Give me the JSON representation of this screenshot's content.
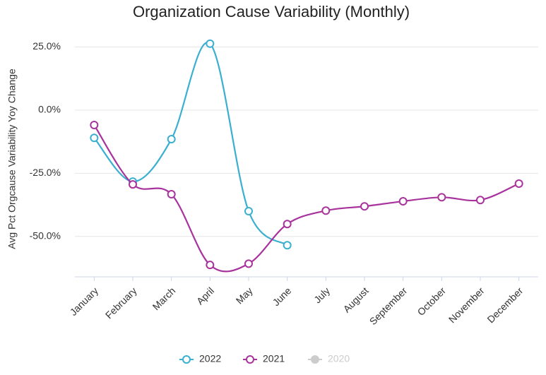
{
  "chart_data": {
    "type": "line",
    "title": "Organization Cause Variability (Monthly)",
    "y_label": "Avg Pct Orgcause Variability Yoy Change",
    "categories": [
      "January",
      "February",
      "March",
      "April",
      "May",
      "June",
      "July",
      "August",
      "September",
      "October",
      "November",
      "December"
    ],
    "series": [
      {
        "name": "2022",
        "color": "#3aafd0",
        "values": [
          -11,
          -28.3,
          -11.5,
          26.3,
          -40,
          -53.5,
          null,
          null,
          null,
          null,
          null,
          null
        ]
      },
      {
        "name": "2021",
        "color": "#a8339c",
        "values": [
          -5.9,
          -29.4,
          -33.3,
          -61.3,
          -60.8,
          -45.1,
          -39.8,
          -38.1,
          -36.1,
          -34.5,
          -35.6,
          -29.1
        ]
      },
      {
        "name": "2020",
        "color": "#cccccc",
        "hidden": true,
        "values": [
          null,
          null,
          null,
          null,
          null,
          null,
          null,
          null,
          null,
          null,
          null,
          null
        ]
      }
    ],
    "ylim": [
      -66,
      31
    ],
    "yticks": [
      {
        "value": 25,
        "label": "25.0%"
      },
      {
        "value": 0,
        "label": "0.0%"
      },
      {
        "value": -25,
        "label": "-25.0%"
      },
      {
        "value": -50,
        "label": "-50.0%"
      }
    ],
    "grid": true,
    "smooth": true,
    "legend": "bottom"
  }
}
